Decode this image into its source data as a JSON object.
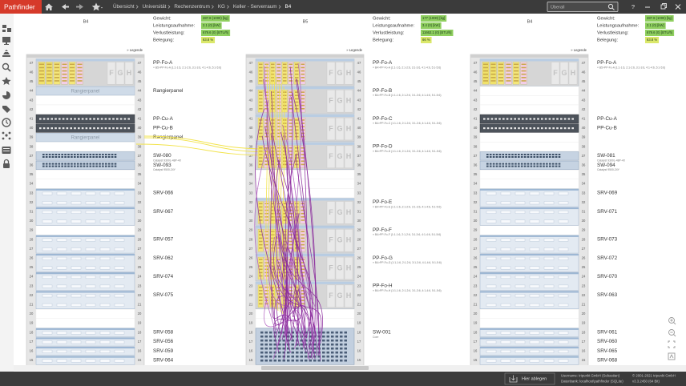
{
  "app": {
    "logo": "Pathfinder",
    "breadcrumb": [
      "Übersicht",
      "Universität",
      "Rechenzentrum",
      "KG",
      "Keller - Serverraum",
      "B4"
    ],
    "search_placeholder": "Überall",
    "help": "?"
  },
  "stats_labels": [
    "Gewicht:",
    "Leistungsaufnahme:",
    "Verlustleistung:",
    "Belegung:"
  ],
  "legend": "» Legende",
  "rack_units": [
    47,
    46,
    45,
    44,
    43,
    42,
    41,
    40,
    39,
    38,
    37,
    36,
    35,
    34,
    33,
    32,
    31,
    30,
    29,
    28,
    27,
    26,
    25,
    24,
    23,
    22,
    21,
    20,
    19,
    18,
    17,
    16,
    15
  ],
  "panel_letters": [
    "F",
    "G",
    "H"
  ],
  "racks": [
    {
      "name": "B4",
      "stats": [
        {
          "value": "287.8 (1000) [kg]",
          "color": "#8fcf5f"
        },
        {
          "value": "2.1 (0) [kW]",
          "color": "#8fcf5f"
        },
        {
          "value": "679.6 (0) [BTU/h]",
          "color": "#8fcf5f"
        },
        {
          "value": "63.8 %",
          "color": "#dbe86a"
        }
      ],
      "devices": [
        {
          "name": "PP-Fo-A",
          "detail": "« B5>PP-Fo-A (1:1-1:6, 2:1-2:6, 3:1-3:6, 4:1-4:6, 5:1-5:6)"
        },
        {
          "name": "Rangierpanel"
        },
        {
          "name": "PP-Cu-A"
        },
        {
          "name": "PP-Cu-B"
        },
        {
          "name": "Rangierpanel"
        },
        {
          "name": "SW-080",
          "detail": "Catalyst 9300L-48P-4X"
        },
        {
          "name": "SW-093",
          "detail": "Catalyst 9500-24Y"
        },
        {
          "name": "SRV-066"
        },
        {
          "name": "SRV-067"
        },
        {
          "name": "SRV-057"
        },
        {
          "name": "SRV-062"
        },
        {
          "name": "SRV-074"
        },
        {
          "name": "SRV-075"
        },
        {
          "name": "SRV-058"
        },
        {
          "name": "SRV-056"
        },
        {
          "name": "SRV-059"
        },
        {
          "name": "SRV-064"
        }
      ]
    },
    {
      "name": "B5",
      "stats": [
        {
          "value": "177 (1000) [kg]",
          "color": "#8fcf5f"
        },
        {
          "value": "3.4 (0) [kW]",
          "color": "#8fcf5f"
        },
        {
          "value": "11662.1 (0) [BTU/h]",
          "color": "#8fcf5f"
        },
        {
          "value": "66 %",
          "color": "#dbe86a"
        }
      ],
      "devices": [
        {
          "name": "PP-Fo-A",
          "detail": "« B4>PP-Fo-A (1:1-1:6, 2:1-2:6, 3:1-3:6, 4:1-4:6, 5:1-5:6)"
        },
        {
          "name": "PP-Fo-B",
          "detail": "« B4>PP-Fo-B (1:1-1:6, 2:1-2:6, 3:1-3:6, 4:1-4:6, 5:1-5:6)"
        },
        {
          "name": "PP-Fo-C",
          "detail": "« B4>PP-Fo-C (1:1-1:6, 2:1-2:6, 3:1-3:6, 4:1-4:6, 5:1-5:6)"
        },
        {
          "name": "PP-Fo-D",
          "detail": "« B4>PP-Fo-D (1:1-1:6, 2:1-2:6, 3:1-3:6, 4:1-4:6, 5:1-5:6)"
        },
        {
          "name": "PP-Fo-E",
          "detail": "« B4>PP-Fo-E (1:1-1:6, 2:1-2:6, 3:1-3:6, 4:1-4:6, 5:1-5:6)"
        },
        {
          "name": "PP-Fo-F",
          "detail": "« B4>PP-Fo-F (1:1-1:6, 2:1-2:6, 3:1-3:6, 4:1-4:6, 5:1-5:6)"
        },
        {
          "name": "PP-Fo-G",
          "detail": "« B4>PP-Fo-G (1:1-1:6, 2:1-2:6, 3:1-3:6, 4:1-4:6, 5:1-5:6)"
        },
        {
          "name": "PP-Fo-H",
          "detail": "« B4>PP-Fo-H (1:1-1:6, 2:1-2:6, 3:1-3:6, 4:1-4:6, 5:1-5:6)"
        },
        {
          "name": "SW-001",
          "detail": "Core"
        }
      ]
    },
    {
      "name": "B4",
      "stats": [
        {
          "value": "287.8 (1000) [kg]",
          "color": "#8fcf5f"
        },
        {
          "value": "2.1 (0) [kW]",
          "color": "#8fcf5f"
        },
        {
          "value": "679.6 (0) [BTU/h]",
          "color": "#8fcf5f"
        },
        {
          "value": "63.8 %",
          "color": "#dbe86a"
        }
      ],
      "devices": [
        {
          "name": "PP-Fo-A",
          "detail": "« B5>PP-Fo-A (1:1-1:6, 2:1-2:6, 3:1-3:6, 4:1-4:6, 5:1-5:6)"
        },
        {
          "name": "PP-Cu-A"
        },
        {
          "name": "PP-Cu-B"
        },
        {
          "name": "SW-081",
          "detail": "Catalyst 9300L-48P-4X"
        },
        {
          "name": "SW-094",
          "detail": "Catalyst 9500-24Y"
        },
        {
          "name": "SRV-069"
        },
        {
          "name": "SRV-071"
        },
        {
          "name": "SRV-073"
        },
        {
          "name": "SRV-072"
        },
        {
          "name": "SRV-070"
        },
        {
          "name": "SRV-063"
        },
        {
          "name": "SRV-061"
        },
        {
          "name": "SRV-060"
        },
        {
          "name": "SRV-065"
        },
        {
          "name": "SRV-068"
        }
      ]
    }
  ],
  "footer": {
    "drop": "Hier ablegen",
    "user": "Username: tripunkt GmbH (Sebastian)",
    "database": "Datenbank: localhost\\pathfinder (SQLite)",
    "copyright": "© 2001-2021 tripunkt GmbH",
    "version": "v3.3.2450 (64 Bit)"
  }
}
